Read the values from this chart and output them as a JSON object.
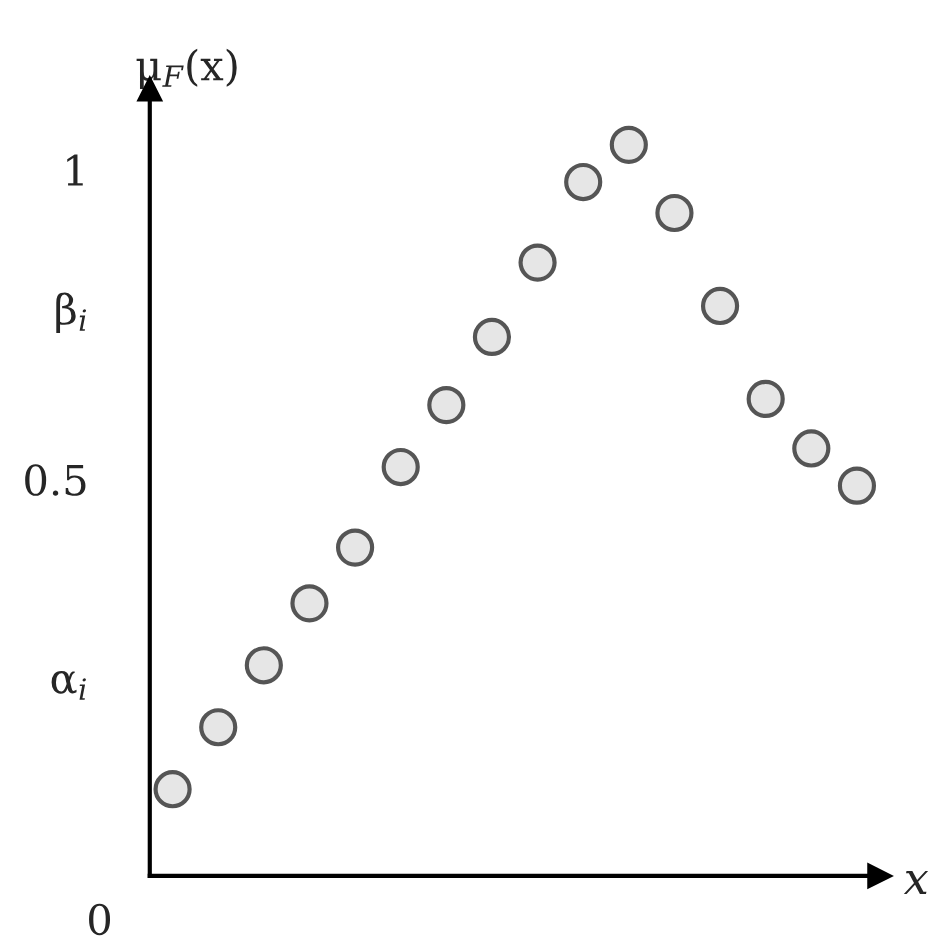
{
  "chart_data": {
    "type": "scatter",
    "xlabel": "x",
    "ylabel": "μ$_{F}$(x)",
    "categories": [
      null,
      null,
      null,
      null,
      null,
      null,
      null,
      null,
      null,
      null,
      null,
      null,
      null,
      null,
      null,
      null
    ],
    "series": [
      {
        "color": "#e6e6e6",
        "values": [
          0.0,
          0.1,
          0.2,
          0.3,
          0.39,
          0.52,
          0.62,
          0.73,
          0.85,
          0.98,
          1.04,
          0.93,
          0.78,
          0.63,
          0.55,
          0.49
        ]
      }
    ],
    "ylim": [
      -0.14,
      1.13
    ],
    "yticks": [
      {
        "value": 0.18,
        "label": "α$_{i}$"
      },
      0.5,
      {
        "value": 0.776,
        "label": "β$_{i}$"
      },
      1
    ],
    "annotations": [
      "0"
    ],
    "marker": "circle",
    "grid": false,
    "legend": false
  }
}
